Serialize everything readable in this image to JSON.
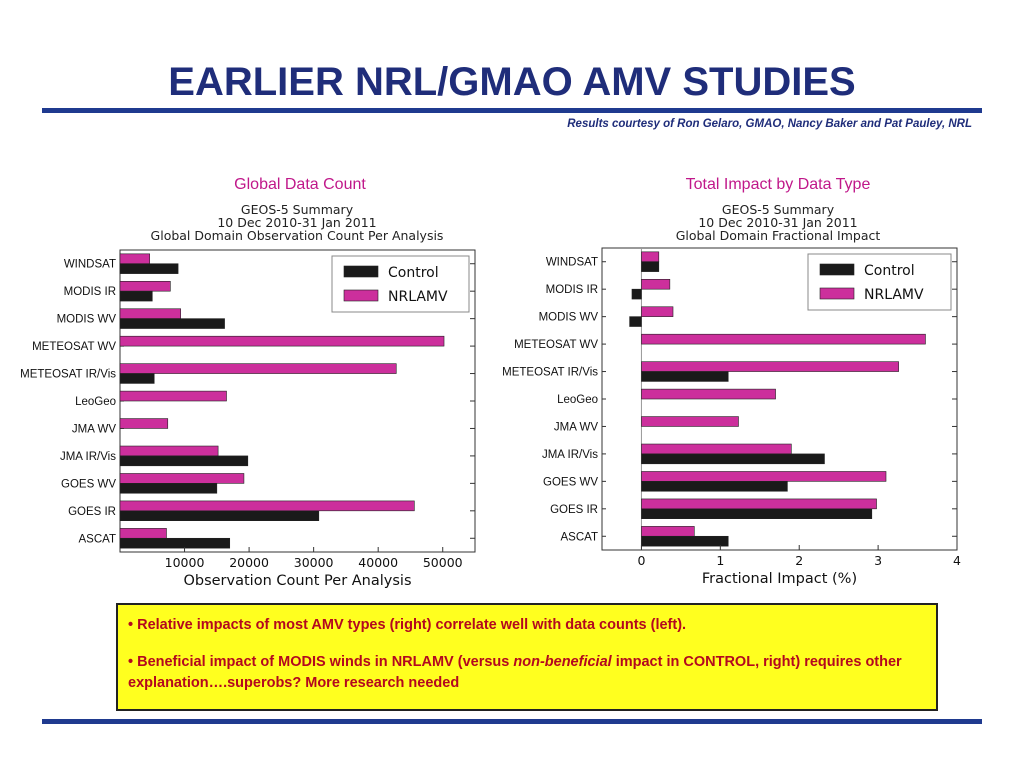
{
  "slide": {
    "title": "EARLIER NRL/GMAO AMV STUDIES",
    "credit": "Results courtesy of Ron Gelaro, GMAO, Nancy Baker and Pat Pauley, NRL"
  },
  "colors": {
    "control": "#1a1a1a",
    "nrlamv": "#cc2f9c",
    "title": "#1f2d7a",
    "accent": "#c0188a"
  },
  "notes": {
    "bullet1": "• Relative impacts of most AMV types (right) correlate well with data counts (left).",
    "bullet2_pre": "• Beneficial impact of MODIS winds in NRLAMV (versus ",
    "bullet2_em": "non-beneficial",
    "bullet2_post": "  impact in CONTROL, right) requires other explanation….superobs?   More  research needed"
  },
  "chart_data": [
    {
      "type": "bar",
      "orientation": "horizontal",
      "slide_heading": "Global Data Count",
      "title": "GEOS-5 Summary\n10 Dec 2010-31 Jan 2011\nGlobal Domain Observation Count Per Analysis",
      "xlabel": "Observation Count Per Analysis",
      "ylabel": "",
      "xlim": [
        0,
        55000
      ],
      "xticks": [
        10000,
        20000,
        30000,
        40000,
        50000
      ],
      "legend": "top-right",
      "grid": false,
      "categories": [
        "WINDSAT",
        "MODIS IR",
        "MODIS WV",
        "METEOSAT WV",
        "METEOSAT IR/Vis",
        "LeoGeo",
        "JMA WV",
        "JMA IR/Vis",
        "GOES WV",
        "GOES IR",
        "ASCAT"
      ],
      "series": [
        {
          "name": "Control",
          "values": [
            9000,
            5000,
            16200,
            0,
            5300,
            0,
            0,
            19800,
            15000,
            30800,
            17000
          ]
        },
        {
          "name": "NRLAMV",
          "values": [
            4600,
            7800,
            9400,
            50200,
            42800,
            16500,
            7400,
            15200,
            19200,
            45600,
            7200
          ]
        }
      ]
    },
    {
      "type": "bar",
      "orientation": "horizontal",
      "slide_heading": "Total Impact by Data Type",
      "title": "GEOS-5 Summary\n10 Dec 2010-31 Jan 2011\nGlobal Domain Fractional Impact",
      "xlabel": "Fractional Impact (%)",
      "ylabel": "",
      "xlim": [
        -0.5,
        4
      ],
      "xticks": [
        0,
        1,
        2,
        3,
        4
      ],
      "legend": "top-right",
      "grid": false,
      "categories": [
        "WINDSAT",
        "MODIS IR",
        "MODIS WV",
        "METEOSAT WV",
        "METEOSAT IR/Vis",
        "LeoGeo",
        "JMA WV",
        "JMA IR/Vis",
        "GOES WV",
        "GOES IR",
        "ASCAT"
      ],
      "series": [
        {
          "name": "Control",
          "values": [
            0.22,
            -0.12,
            -0.15,
            0,
            1.1,
            0,
            0,
            2.32,
            1.85,
            2.92,
            1.1
          ]
        },
        {
          "name": "NRLAMV",
          "values": [
            0.22,
            0.36,
            0.4,
            3.6,
            3.26,
            1.7,
            1.23,
            1.9,
            3.1,
            2.98,
            0.67
          ]
        }
      ]
    }
  ]
}
